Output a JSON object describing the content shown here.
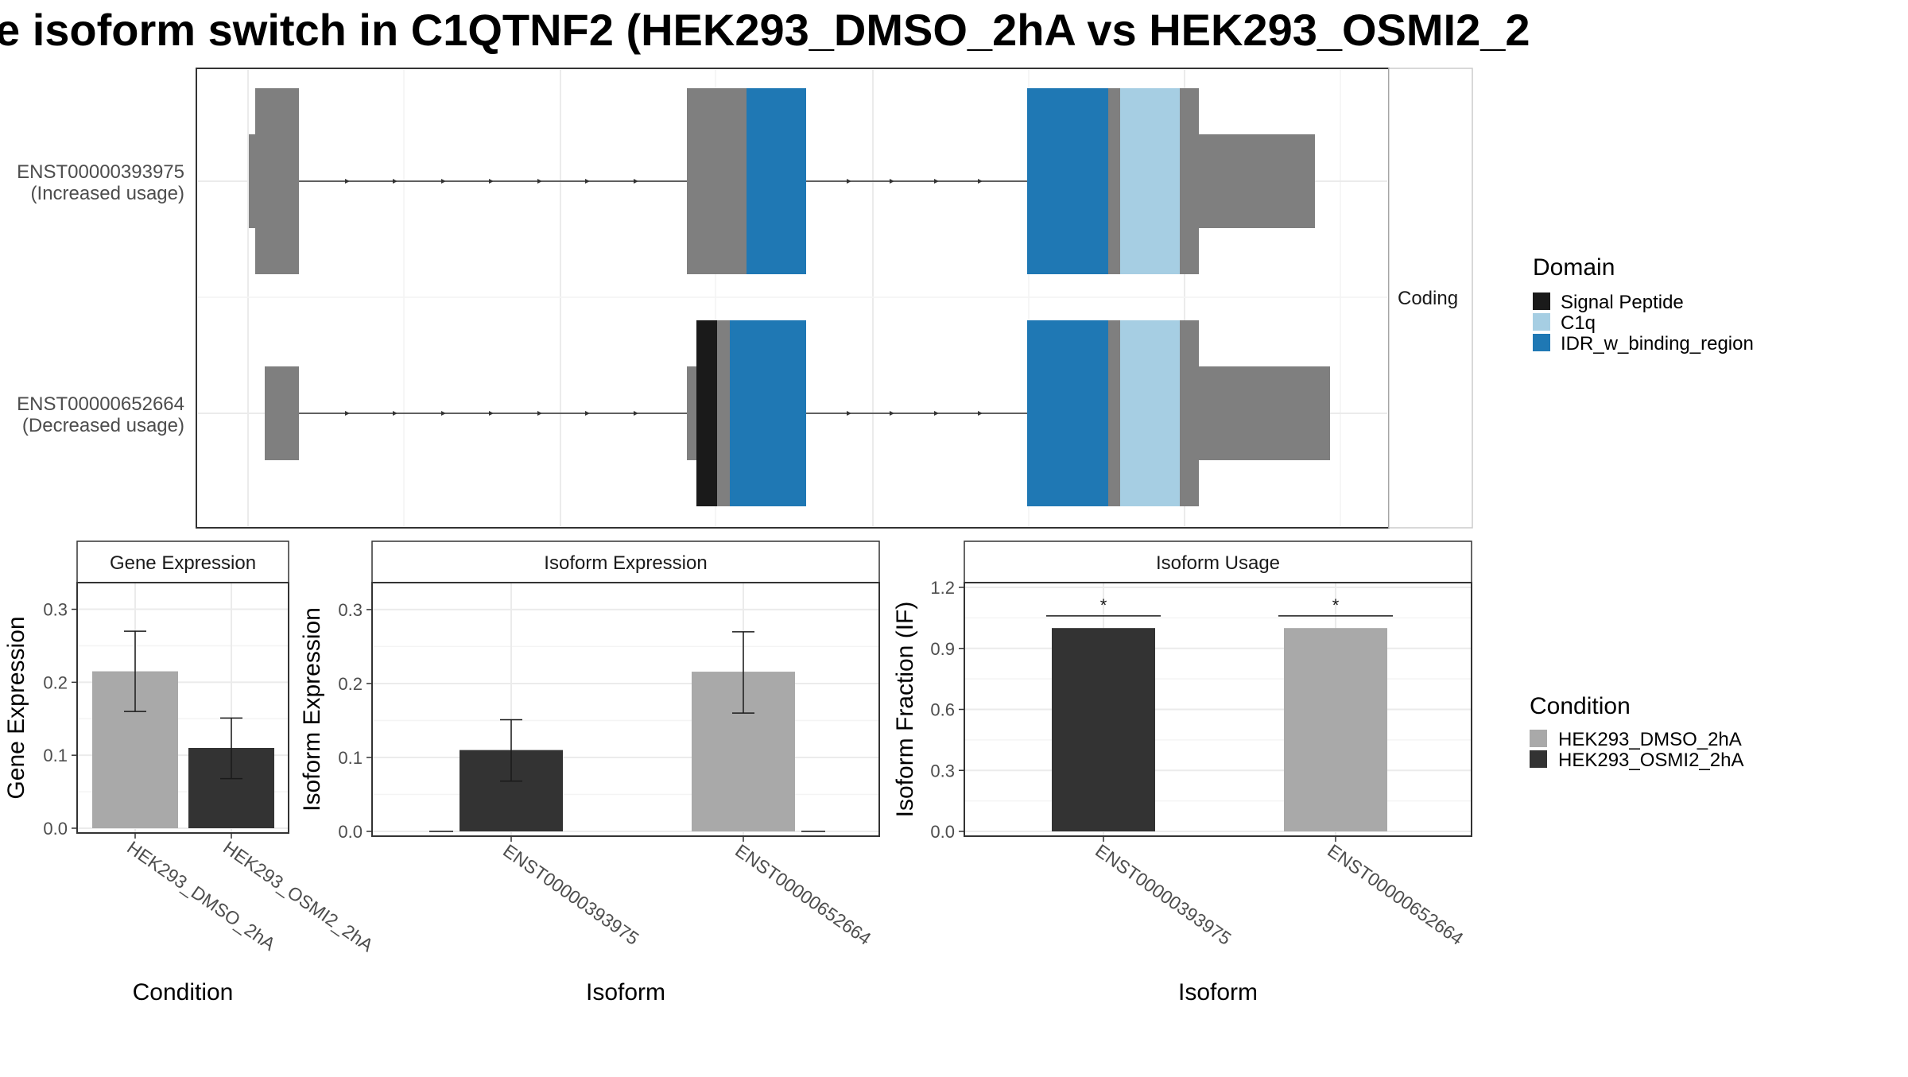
{
  "title": "e isoform switch in C1QTNF2 (HEK293_DMSO_2hA vs HEK293_OSMI2_2",
  "structure": {
    "facet_label": "Coding",
    "isoforms": [
      {
        "id": "ENST00000393975",
        "usage": "(Increased usage)"
      },
      {
        "id": "ENST00000652664",
        "usage": "(Decreased usage)"
      }
    ]
  },
  "domain_legend": {
    "title": "Domain",
    "items": [
      {
        "label": "Signal Peptide",
        "color": "#1a1a1a"
      },
      {
        "label": "C1q",
        "color": "#a6cee3"
      },
      {
        "label": "IDR_w_binding_region",
        "color": "#1f78b4"
      }
    ]
  },
  "condition_legend": {
    "title": "Condition",
    "items": [
      {
        "label": "HEK293_DMSO_2hA",
        "color": "#a9a9a9"
      },
      {
        "label": "HEK293_OSMI2_2hA",
        "color": "#333333"
      }
    ]
  },
  "colors": {
    "exon_gray": "#7f7f7f",
    "grid": "#ebebeb"
  },
  "chart_data": [
    {
      "type": "bar",
      "title": "Gene Expression",
      "xlabel": "Condition",
      "ylabel": "Gene Expression",
      "categories": [
        "HEK293_DMSO_2hA",
        "HEK293_OSMI2_2hA"
      ],
      "values": [
        0.215,
        0.11
      ],
      "error_low": [
        0.16,
        0.068
      ],
      "error_high": [
        0.27,
        0.151
      ],
      "ylim": [
        0,
        0.33
      ],
      "yticks": [
        "0.0",
        "0.1",
        "0.2",
        "0.3"
      ]
    },
    {
      "type": "bar",
      "title": "Isoform Expression",
      "xlabel": "Isoform",
      "ylabel": "Isoform Expression",
      "categories": [
        "ENST00000393975",
        "ENST00000652664"
      ],
      "series": [
        {
          "name": "HEK293_DMSO_2hA",
          "values": [
            0,
            0.216
          ],
          "error_low": [
            0,
            0.16
          ],
          "error_high": [
            0,
            0.27
          ]
        },
        {
          "name": "HEK293_OSMI2_2hA",
          "values": [
            0.11,
            0
          ],
          "error_low": [
            0.068,
            0
          ],
          "error_high": [
            0.151,
            0
          ]
        }
      ],
      "ylim": [
        0,
        0.33
      ],
      "yticks": [
        "0.0",
        "0.1",
        "0.2",
        "0.3"
      ]
    },
    {
      "type": "bar",
      "title": "Isoform Usage",
      "xlabel": "Isoform",
      "ylabel": "Isoform Fraction (IF)",
      "categories": [
        "ENST00000393975",
        "ENST00000652664"
      ],
      "series": [
        {
          "name": "HEK293_DMSO_2hA",
          "values": [
            0,
            1.0
          ]
        },
        {
          "name": "HEK293_OSMI2_2hA",
          "values": [
            1.0,
            0
          ]
        }
      ],
      "significance": [
        "*",
        "*"
      ],
      "ylim": [
        0,
        1.2
      ],
      "yticks": [
        "0.0",
        "0.3",
        "0.6",
        "0.9",
        "1.2"
      ]
    }
  ]
}
